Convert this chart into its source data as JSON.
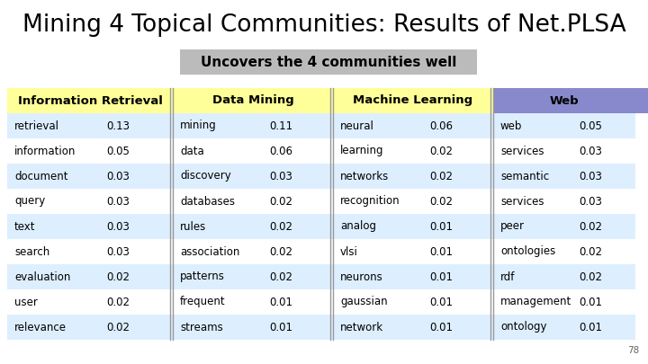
{
  "title": "Mining 4 Topical Communities: Results of Net.PLSA",
  "subtitle": "Uncovers the 4 communities well",
  "background_color": "#ffffff",
  "header_bg": "#ffff99",
  "header_bg_web": "#8888cc",
  "row_bg_even": "#ddeeff",
  "row_bg_odd": "#ffffff",
  "subtitle_bg": "#bbbbbb",
  "columns": [
    {
      "header": "Information Retrieval",
      "words": [
        "retrieval",
        "information",
        "document",
        "query",
        "text",
        "search",
        "evaluation",
        "user",
        "relevance"
      ],
      "values": [
        "0.13",
        "0.05",
        "0.03",
        "0.03",
        "0.03",
        "0.03",
        "0.02",
        "0.02",
        "0.02"
      ]
    },
    {
      "header": "Data Mining",
      "words": [
        "mining",
        "data",
        "discovery",
        "databases",
        "rules",
        "association",
        "patterns",
        "frequent",
        "streams"
      ],
      "values": [
        "0.11",
        "0.06",
        "0.03",
        "0.02",
        "0.02",
        "0.02",
        "0.02",
        "0.01",
        "0.01"
      ]
    },
    {
      "header": "Machine Learning",
      "words": [
        "neural",
        "learning",
        "networks",
        "recognition",
        "analog",
        "vlsi",
        "neurons",
        "gaussian",
        "network"
      ],
      "values": [
        "0.06",
        "0.02",
        "0.02",
        "0.02",
        "0.01",
        "0.01",
        "0.01",
        "0.01",
        "0.01"
      ]
    },
    {
      "header": "Web",
      "words": [
        "web",
        "services",
        "semantic",
        "services",
        "peer",
        "ontologies",
        "rdf",
        "management",
        "ontology"
      ],
      "values": [
        "0.05",
        "0.03",
        "0.03",
        "0.03",
        "0.02",
        "0.02",
        "0.02",
        "0.01",
        "0.01"
      ]
    }
  ],
  "page_number": "78",
  "title_fontsize": 19,
  "header_fontsize": 9.5,
  "cell_fontsize": 8.5,
  "subtitle_fontsize": 11
}
